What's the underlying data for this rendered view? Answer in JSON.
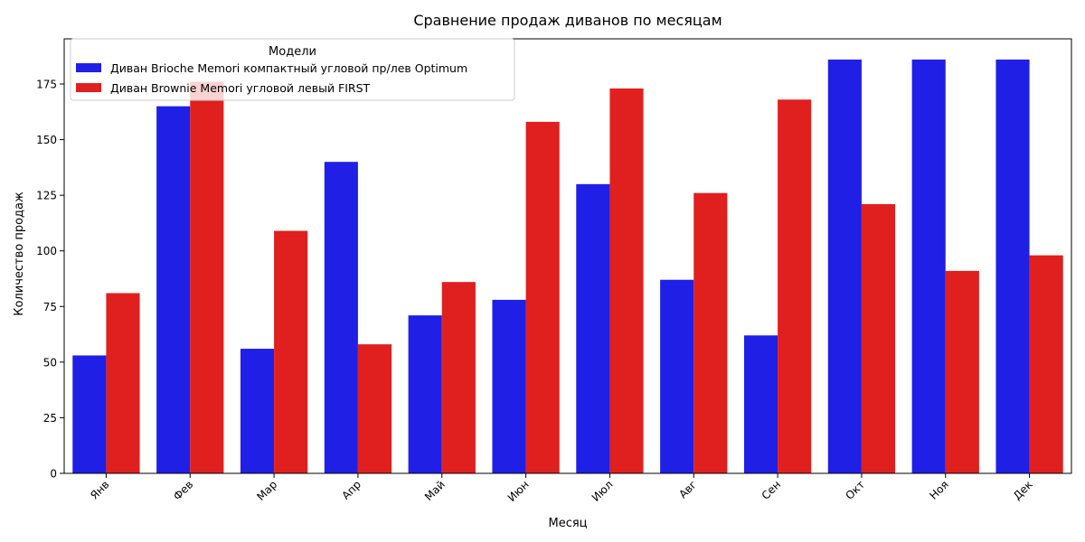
{
  "chart_data": {
    "type": "bar",
    "title": "Сравнение продаж диванов по месяцам",
    "xlabel": "Месяц",
    "ylabel": "Количество продаж",
    "categories": [
      "Янв",
      "Фев",
      "Мар",
      "Апр",
      "Май",
      "Июн",
      "Июл",
      "Авг",
      "Сен",
      "Окт",
      "Ноя",
      "Дек"
    ],
    "series": [
      {
        "name": "Диван Brioche Memori компактный угловой пр/лев Optimum",
        "color": "#1f1fe6",
        "values": [
          53,
          165,
          56,
          140,
          71,
          78,
          130,
          87,
          62,
          186,
          186,
          186
        ]
      },
      {
        "name": "Диван Brownie Memori угловой левый FIRST",
        "color": "#e01f1f",
        "values": [
          81,
          176,
          109,
          58,
          86,
          158,
          173,
          126,
          168,
          121,
          91,
          98
        ]
      }
    ],
    "yticks": [
      0,
      25,
      50,
      75,
      100,
      125,
      150,
      175
    ],
    "ylim": [
      0,
      195.3
    ],
    "legend": {
      "title": "Модели",
      "position": "top-left"
    },
    "grid": false
  }
}
